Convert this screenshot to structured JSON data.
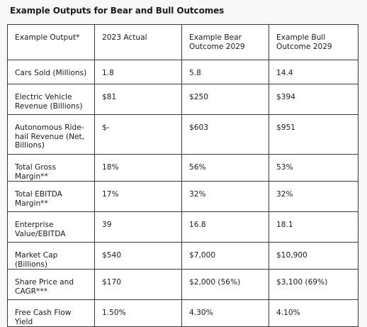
{
  "title": "Example Outputs for Bear and Bull Outcomes",
  "table": {
    "headers": [
      "Example Output*",
      "2023 Actual",
      "Example Bear Outcome 2029",
      "Example Bull Outcome 2029"
    ],
    "rows": [
      [
        "Cars Sold (Millions)",
        "1.8",
        "5.8",
        "14.4"
      ],
      [
        "Electric Vehicle Revenue (Billions)",
        "$81",
        "$250",
        "$394"
      ],
      [
        "Autonomous Ride-hail Revenue (Net, Billions)",
        "$-",
        "$603",
        "$951"
      ],
      [
        "Total Gross Margin**",
        "18%",
        "56%",
        "53%"
      ],
      [
        "Total EBITDA Margin**",
        "17%",
        "32%",
        "32%"
      ],
      [
        "Enterprise Value/EBITDA",
        "39",
        "16.8",
        "18.1"
      ],
      [
        "Market Cap (Billions)",
        "$540",
        "$7,000",
        "$10,900"
      ],
      [
        "Share Price and CAGR***",
        "$170",
        "$2,000 (56%)",
        "$3,100 (69%)"
      ],
      [
        "Free Cash Flow Yield",
        "1.50%",
        "4.30%",
        "4.10%"
      ]
    ]
  }
}
